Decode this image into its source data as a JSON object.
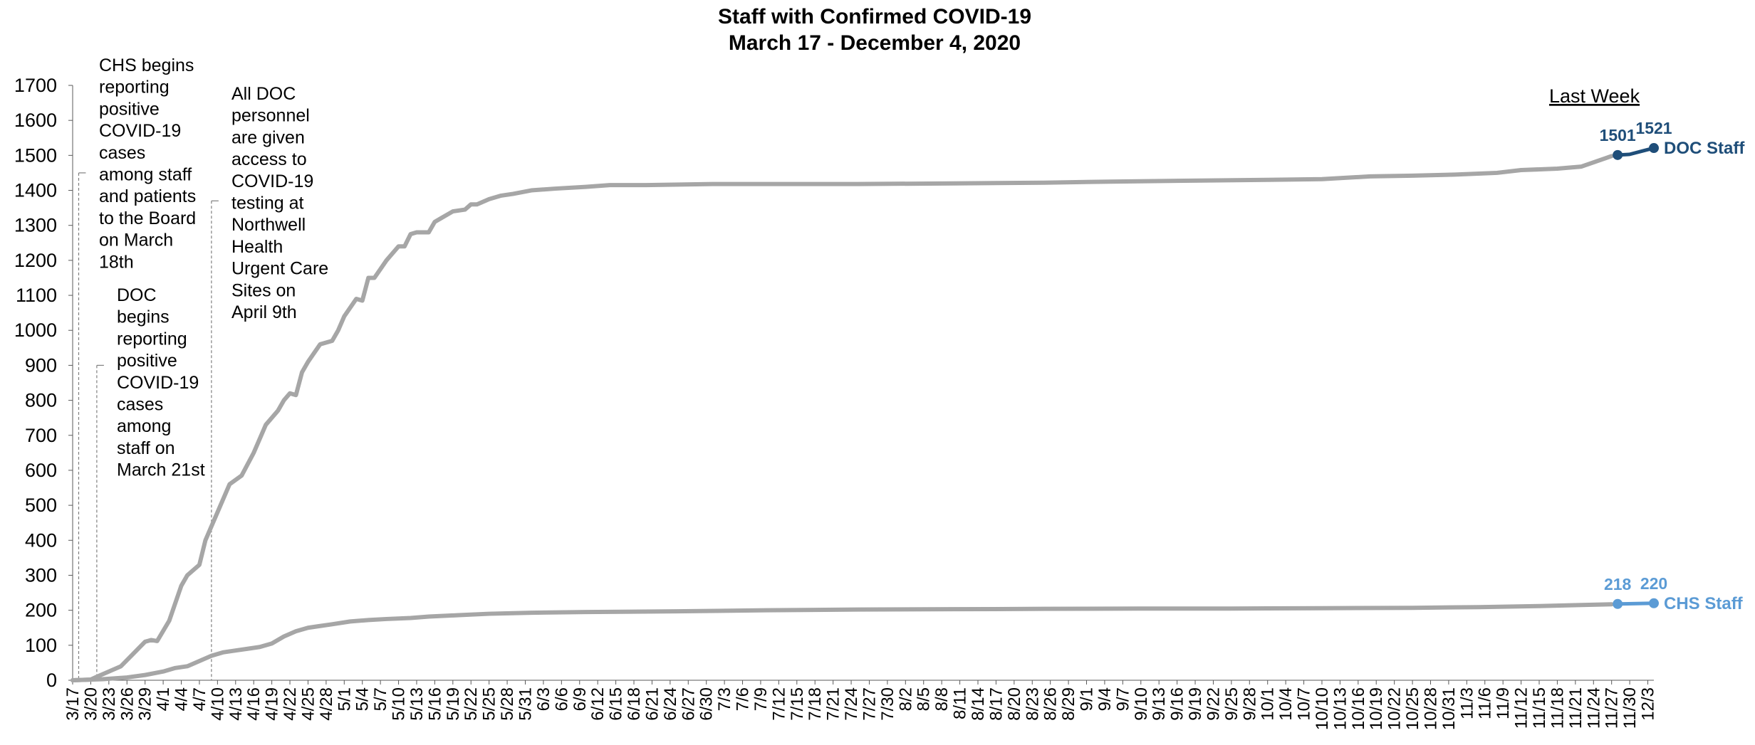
{
  "chart_data": {
    "type": "line",
    "title": "Staff with Confirmed COVID-19",
    "subtitle": "March 17 - December 4, 2020",
    "xlabel": "",
    "ylabel": "",
    "ylim": [
      0,
      1700
    ],
    "y_ticks": [
      "0",
      "100",
      "200",
      "300",
      "400",
      "500",
      "600",
      "700",
      "800",
      "900",
      "1000",
      "1100",
      "1200",
      "1300",
      "1400",
      "1500",
      "1600",
      "1700"
    ],
    "x_tick_labels": [
      "3/17",
      "3/20",
      "3/23",
      "3/26",
      "3/29",
      "4/1",
      "4/4",
      "4/7",
      "4/10",
      "4/13",
      "4/16",
      "4/19",
      "4/22",
      "4/25",
      "4/28",
      "5/1",
      "5/4",
      "5/7",
      "5/10",
      "5/13",
      "5/16",
      "5/19",
      "5/22",
      "5/25",
      "5/28",
      "5/31",
      "6/3",
      "6/6",
      "6/9",
      "6/12",
      "6/15",
      "6/18",
      "6/21",
      "6/24",
      "6/27",
      "6/30",
      "7/3",
      "7/6",
      "7/9",
      "7/12",
      "7/15",
      "7/18",
      "7/21",
      "7/24",
      "7/27",
      "7/30",
      "8/2",
      "8/5",
      "8/8",
      "8/11",
      "8/14",
      "8/17",
      "8/20",
      "8/23",
      "8/26",
      "8/29",
      "9/1",
      "9/4",
      "9/7",
      "9/10",
      "9/13",
      "9/16",
      "9/19",
      "9/22",
      "9/25",
      "9/28",
      "10/1",
      "10/4",
      "10/7",
      "10/10",
      "10/13",
      "10/16",
      "10/19",
      "10/22",
      "10/25",
      "10/28",
      "10/31",
      "11/3",
      "11/6",
      "11/9",
      "11/12",
      "11/15",
      "11/18",
      "11/21",
      "11/24",
      "11/27",
      "11/30",
      "12/3"
    ],
    "x_start": "2020-03-17",
    "x_end": "2020-12-04",
    "grid": false,
    "legend": "none",
    "series": [
      {
        "name": "DOC Staff",
        "color_history": "#a6a6a6",
        "color_last_week": "#1f4e79",
        "points": [
          [
            "2020-03-17",
            0
          ],
          [
            "2020-03-20",
            2
          ],
          [
            "2020-03-21",
            10
          ],
          [
            "2020-03-23",
            25
          ],
          [
            "2020-03-25",
            40
          ],
          [
            "2020-03-27",
            75
          ],
          [
            "2020-03-29",
            110
          ],
          [
            "2020-03-30",
            115
          ],
          [
            "2020-03-31",
            112
          ],
          [
            "2020-04-02",
            170
          ],
          [
            "2020-04-04",
            270
          ],
          [
            "2020-04-05",
            300
          ],
          [
            "2020-04-07",
            330
          ],
          [
            "2020-04-08",
            400
          ],
          [
            "2020-04-10",
            480
          ],
          [
            "2020-04-12",
            560
          ],
          [
            "2020-04-14",
            585
          ],
          [
            "2020-04-16",
            650
          ],
          [
            "2020-04-18",
            730
          ],
          [
            "2020-04-20",
            770
          ],
          [
            "2020-04-21",
            800
          ],
          [
            "2020-04-22",
            820
          ],
          [
            "2020-04-23",
            815
          ],
          [
            "2020-04-24",
            880
          ],
          [
            "2020-04-25",
            910
          ],
          [
            "2020-04-27",
            960
          ],
          [
            "2020-04-29",
            970
          ],
          [
            "2020-04-30",
            1000
          ],
          [
            "2020-05-01",
            1040
          ],
          [
            "2020-05-03",
            1090
          ],
          [
            "2020-05-04",
            1085
          ],
          [
            "2020-05-05",
            1150
          ],
          [
            "2020-05-06",
            1150
          ],
          [
            "2020-05-08",
            1200
          ],
          [
            "2020-05-10",
            1240
          ],
          [
            "2020-05-11",
            1240
          ],
          [
            "2020-05-12",
            1275
          ],
          [
            "2020-05-13",
            1280
          ],
          [
            "2020-05-15",
            1280
          ],
          [
            "2020-05-16",
            1310
          ],
          [
            "2020-05-17",
            1320
          ],
          [
            "2020-05-19",
            1340
          ],
          [
            "2020-05-21",
            1345
          ],
          [
            "2020-05-22",
            1360
          ],
          [
            "2020-05-23",
            1360
          ],
          [
            "2020-05-25",
            1375
          ],
          [
            "2020-05-27",
            1385
          ],
          [
            "2020-05-29",
            1390
          ],
          [
            "2020-06-01",
            1400
          ],
          [
            "2020-06-05",
            1405
          ],
          [
            "2020-06-10",
            1410
          ],
          [
            "2020-06-14",
            1415
          ],
          [
            "2020-06-20",
            1415
          ],
          [
            "2020-07-01",
            1418
          ],
          [
            "2020-07-25",
            1418
          ],
          [
            "2020-08-10",
            1420
          ],
          [
            "2020-08-25",
            1422
          ],
          [
            "2020-09-05",
            1425
          ],
          [
            "2020-09-20",
            1428
          ],
          [
            "2020-10-01",
            1430
          ],
          [
            "2020-10-10",
            1432
          ],
          [
            "2020-10-18",
            1440
          ],
          [
            "2020-10-25",
            1442
          ],
          [
            "2020-11-01",
            1445
          ],
          [
            "2020-11-08",
            1450
          ],
          [
            "2020-11-12",
            1458
          ],
          [
            "2020-11-18",
            1462
          ],
          [
            "2020-11-22",
            1468
          ],
          [
            "2020-11-24",
            1480
          ],
          [
            "2020-11-26",
            1492
          ],
          [
            "2020-11-27",
            1498
          ]
        ],
        "last_week_points": [
          [
            "2020-11-28",
            1501
          ],
          [
            "2020-11-30",
            1503
          ],
          [
            "2020-12-02",
            1512
          ],
          [
            "2020-12-04",
            1521
          ]
        ],
        "data_labels": [
          {
            "date": "2020-11-28",
            "value": 1501,
            "text": "1501"
          },
          {
            "date": "2020-12-04",
            "value": 1521,
            "text": "1521"
          }
        ]
      },
      {
        "name": "CHS Staff",
        "color_history": "#a6a6a6",
        "color_last_week": "#5b9bd5",
        "points": [
          [
            "2020-03-17",
            0
          ],
          [
            "2020-03-22",
            3
          ],
          [
            "2020-03-26",
            8
          ],
          [
            "2020-03-29",
            15
          ],
          [
            "2020-04-01",
            25
          ],
          [
            "2020-04-03",
            35
          ],
          [
            "2020-04-05",
            40
          ],
          [
            "2020-04-07",
            55
          ],
          [
            "2020-04-09",
            70
          ],
          [
            "2020-04-11",
            80
          ],
          [
            "2020-04-13",
            85
          ],
          [
            "2020-04-15",
            90
          ],
          [
            "2020-04-17",
            95
          ],
          [
            "2020-04-19",
            105
          ],
          [
            "2020-04-21",
            125
          ],
          [
            "2020-04-23",
            140
          ],
          [
            "2020-04-25",
            150
          ],
          [
            "2020-04-27",
            155
          ],
          [
            "2020-04-29",
            160
          ],
          [
            "2020-05-02",
            168
          ],
          [
            "2020-05-05",
            172
          ],
          [
            "2020-05-08",
            175
          ],
          [
            "2020-05-12",
            178
          ],
          [
            "2020-05-15",
            182
          ],
          [
            "2020-05-20",
            186
          ],
          [
            "2020-05-25",
            190
          ],
          [
            "2020-06-01",
            193
          ],
          [
            "2020-06-10",
            195
          ],
          [
            "2020-06-25",
            197
          ],
          [
            "2020-07-10",
            200
          ],
          [
            "2020-07-25",
            202
          ],
          [
            "2020-08-10",
            203
          ],
          [
            "2020-08-25",
            204
          ],
          [
            "2020-09-10",
            205
          ],
          [
            "2020-09-25",
            205
          ],
          [
            "2020-10-10",
            206
          ],
          [
            "2020-10-25",
            207
          ],
          [
            "2020-11-05",
            209
          ],
          [
            "2020-11-15",
            212
          ],
          [
            "2020-11-22",
            215
          ],
          [
            "2020-11-27",
            217
          ]
        ],
        "last_week_points": [
          [
            "2020-11-28",
            218
          ],
          [
            "2020-12-04",
            220
          ]
        ],
        "data_labels": [
          {
            "date": "2020-11-28",
            "value": 218,
            "text": "218"
          },
          {
            "date": "2020-12-04",
            "value": 220,
            "text": "220"
          }
        ]
      }
    ],
    "annotations": [
      {
        "name": "chs-reporting-annotation",
        "marker_date": "2020-03-18",
        "marker_value": 1450,
        "lines": [
          "CHS begins",
          "reporting",
          "positive",
          "COVID-19",
          "cases",
          "among staff",
          "and patients",
          "to the Board",
          "on March",
          "18th"
        ]
      },
      {
        "name": "doc-reporting-annotation",
        "marker_date": "2020-03-21",
        "marker_value": 900,
        "lines": [
          "DOC",
          "begins",
          "reporting",
          "positive",
          "COVID-19",
          "cases",
          "among",
          "staff on",
          "March 21st"
        ]
      },
      {
        "name": "testing-access-annotation",
        "marker_date": "2020-04-09",
        "marker_value": 1370,
        "lines": [
          "All DOC",
          "personnel",
          "are given",
          "access to",
          "COVID-19",
          "testing at",
          "Northwell",
          "Health",
          "Urgent Care",
          "Sites on",
          "April 9th"
        ]
      }
    ],
    "last_week_label": "Last Week"
  }
}
